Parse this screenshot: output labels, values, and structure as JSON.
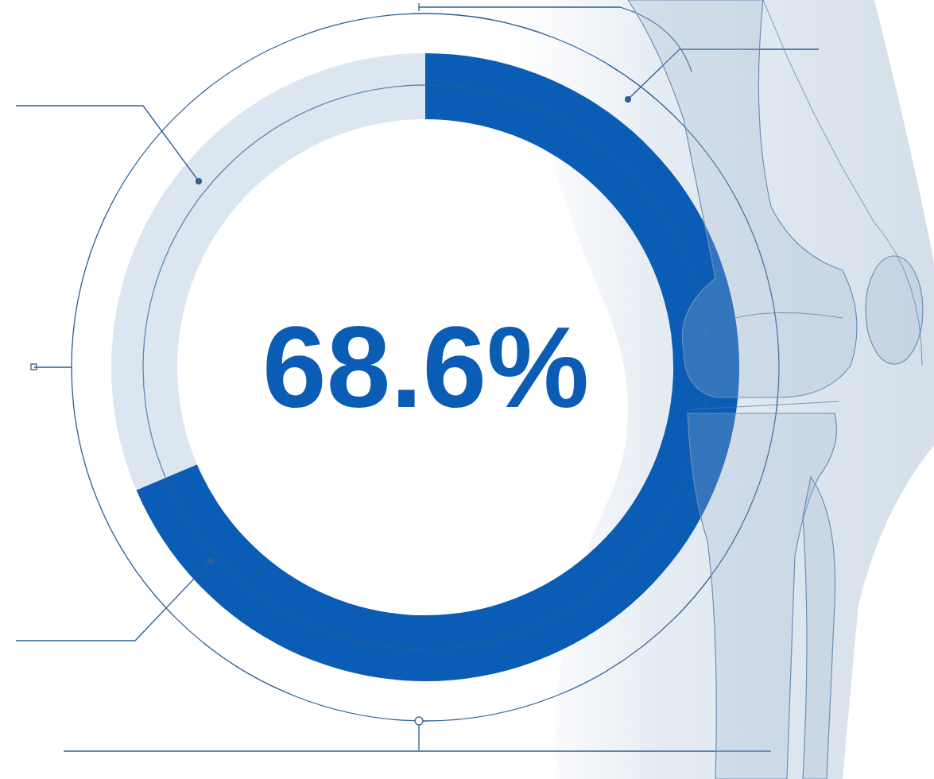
{
  "chart_data": {
    "type": "donut",
    "values": [
      68.6,
      31.4
    ],
    "colors": [
      "#0b5cb5",
      "#dbe6f1"
    ],
    "center_label": "68.6%"
  }
}
